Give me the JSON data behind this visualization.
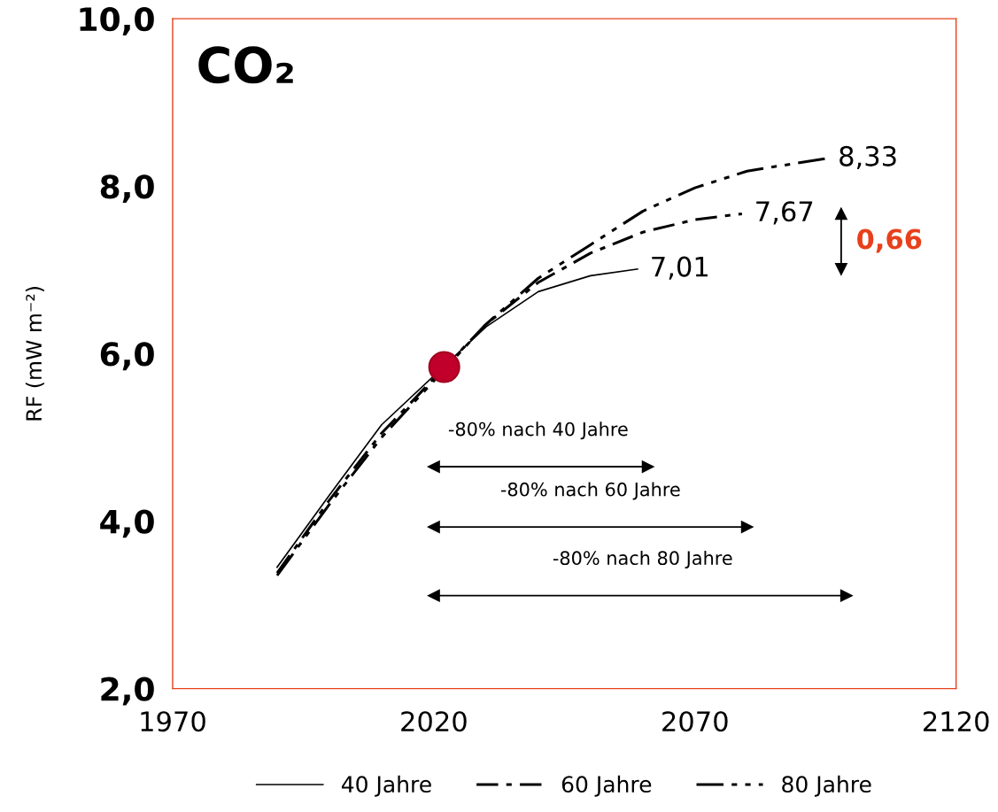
{
  "chart_data": {
    "type": "line",
    "title": "CO₂",
    "ylabel": "RF (mW m⁻²)",
    "xlim": [
      1970,
      2120
    ],
    "xticks": [
      1970,
      2020,
      2070,
      2120
    ],
    "ylim": [
      2.0,
      10.0
    ],
    "yticks": [
      {
        "value": 2,
        "label": "2,0"
      },
      {
        "value": 4,
        "label": "4,0"
      },
      {
        "value": 6,
        "label": "6,0"
      },
      {
        "value": 8,
        "label": "8,0"
      },
      {
        "value": 10,
        "label": "10,0"
      }
    ],
    "grid": false,
    "legend": "bottom",
    "marker": "none",
    "series": [
      {
        "name": "40 Jahre",
        "color": "#000000",
        "line_style": "solid",
        "x": [
          1990,
          2000,
          2010,
          2030,
          2040,
          2050,
          2059
        ],
        "values": [
          3.45,
          4.31,
          5.15,
          6.32,
          6.74,
          6.93,
          7.01
        ]
      },
      {
        "name": "60 Jahre",
        "color": "#000000",
        "line_style": "dashdot",
        "x": [
          1990,
          2000,
          2010,
          2030,
          2040,
          2050,
          2060,
          2070,
          2079
        ],
        "values": [
          3.38,
          4.25,
          5.05,
          6.35,
          6.85,
          7.2,
          7.45,
          7.6,
          7.67
        ]
      },
      {
        "name": "80 Jahre",
        "color": "#000000",
        "line_style": "dashdotdot",
        "x": [
          1990,
          2000,
          2010,
          2030,
          2040,
          2050,
          2060,
          2070,
          2080,
          2090,
          2095
        ],
        "values": [
          3.35,
          4.2,
          5.0,
          6.35,
          6.9,
          7.3,
          7.7,
          7.98,
          8.18,
          8.28,
          8.33
        ]
      },
      {
        "type": "scatter",
        "marker": "circle",
        "color": "#c0002a",
        "x": [
          2022
        ],
        "values": [
          5.84
        ]
      },
      {
        "color": "#000000",
        "line_style": "solid",
        "marker": "triangle",
        "x": [
          2020,
          2061
        ],
        "values": [
          4.65,
          4.65
        ]
      },
      {
        "color": "#000000",
        "line_style": "solid",
        "marker": "triangle",
        "x": [
          2020,
          2080
        ],
        "values": [
          3.93,
          3.93
        ]
      },
      {
        "color": "#000000",
        "line_style": "solid",
        "marker": "triangle",
        "x": [
          2020,
          2099
        ],
        "values": [
          3.11,
          3.11
        ]
      },
      {
        "color": "#000000",
        "line_style": "solid",
        "marker": "triangle",
        "x": [
          2098,
          2098
        ],
        "values": [
          7.01,
          7.67
        ]
      }
    ],
    "annotations": [
      {
        "text": "7,01",
        "x": 2059,
        "y": 7.01
      },
      {
        "text": "7,67",
        "x": 2079,
        "y": 7.67
      },
      {
        "text": "8,33",
        "x": 2095,
        "y": 8.33
      },
      {
        "text": "0,66",
        "x": 2098,
        "y": 7.34
      },
      {
        "text": "-80% nach 40 Jahre",
        "x": 2040,
        "y": 4.65
      },
      {
        "text": "-80% nach 60 Jahre",
        "x": 2050,
        "y": 3.93
      },
      {
        "text": "-80% nach 80 Jahre",
        "x": 2060,
        "y": 3.11
      }
    ]
  }
}
